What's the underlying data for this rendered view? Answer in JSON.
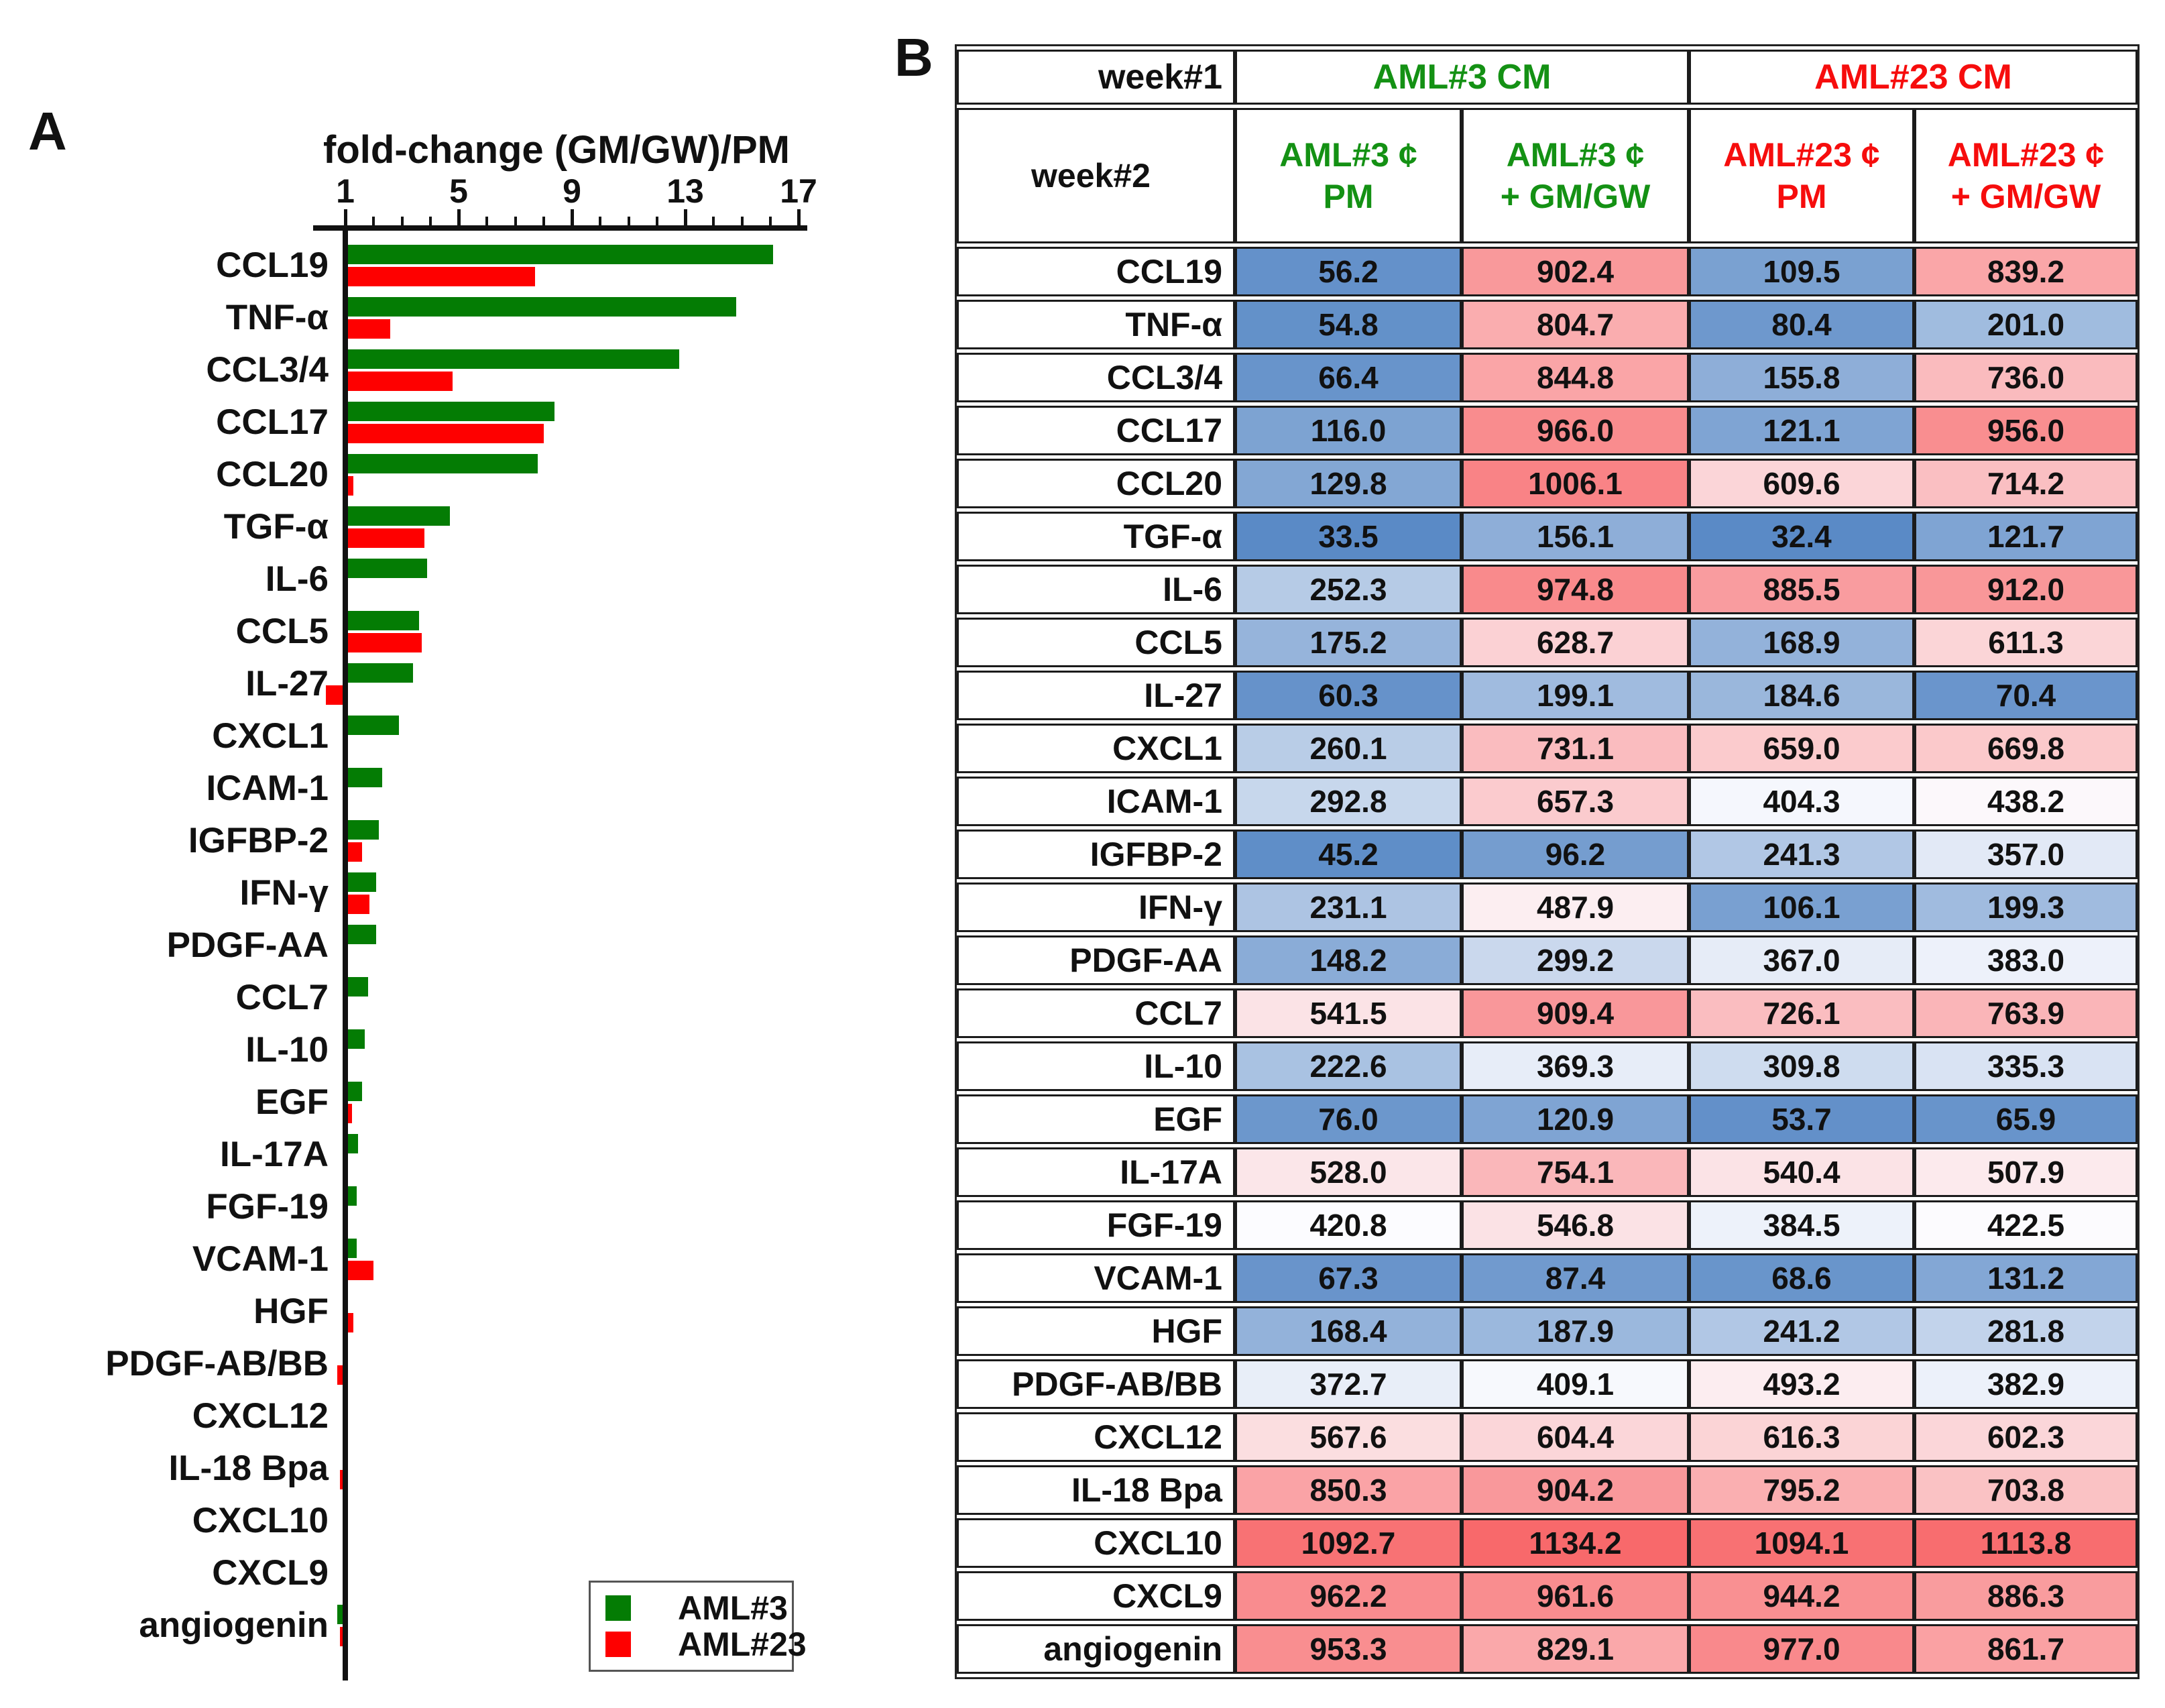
{
  "panel_a": {
    "label": "A"
  },
  "panel_b": {
    "label": "B"
  },
  "colors": {
    "bar_green": "#047c04",
    "bar_red": "#fe0000",
    "header_green": "#149114",
    "header_red": "#f60d0d",
    "axis_black": "#111111"
  },
  "heat_scale": {
    "min": 32.4,
    "mid": 420.0,
    "max": 1134.2,
    "low_color": "#5A8AC6",
    "mid_color": "#FCFCFF",
    "high_color": "#F8696B"
  },
  "legend": {
    "items": [
      {
        "label": "AML#3",
        "color": "#047c04"
      },
      {
        "label": "AML#23",
        "color": "#fe0000"
      }
    ]
  },
  "chart_data": {
    "type": "bar",
    "orientation": "horizontal",
    "title": "fold-change (GM/GW)/PM",
    "axis_position": "top",
    "xlim": [
      1,
      17
    ],
    "major_ticks": [
      1,
      5,
      9,
      13,
      17
    ],
    "minor_tick_step": 1,
    "grid": false,
    "legend_position": "lower right",
    "categories": [
      "CCL19",
      "TNF-α",
      "CCL3/4",
      "CCL17",
      "CCL20",
      "TGF-α",
      "IL-6",
      "CCL5",
      "IL-27",
      "CXCL1",
      "ICAM-1",
      "IGFBP-2",
      "IFN-γ",
      "PDGF-AA",
      "CCL7",
      "IL-10",
      "EGF",
      "IL-17A",
      "FGF-19",
      "VCAM-1",
      "HGF",
      "PDGF-AB/BB",
      "CXCL12",
      "IL-18 Bpa",
      "CXCL10",
      "CXCL9",
      "angiogenin"
    ],
    "series": [
      {
        "name": "AML#3",
        "color": "#047c04",
        "values": [
          16.0,
          14.7,
          12.7,
          8.3,
          7.7,
          4.6,
          3.8,
          3.5,
          3.3,
          2.8,
          2.2,
          2.1,
          2.0,
          2.0,
          1.7,
          1.6,
          1.5,
          1.35,
          1.3,
          1.3,
          1.0,
          1.0,
          1.0,
          1.0,
          1.0,
          1.0,
          0.8
        ]
      },
      {
        "name": "AML#23",
        "color": "#fe0000",
        "values": [
          7.6,
          2.5,
          4.7,
          7.9,
          1.2,
          3.7,
          1.0,
          3.6,
          0.4,
          1.0,
          1.0,
          1.5,
          1.75,
          1.0,
          1.0,
          1.0,
          1.15,
          1.0,
          1.0,
          1.9,
          1.2,
          0.8,
          1.0,
          0.9,
          1.0,
          1.0,
          0.9
        ]
      }
    ]
  },
  "table": {
    "corner_row1": "week#1",
    "corner_row2": "week#2",
    "groups": [
      {
        "label": "AML#3 CM",
        "color_class": "grp-green"
      },
      {
        "label": "AML#23 CM",
        "color_class": "grp-red"
      }
    ],
    "columns": [
      {
        "line1": "AML#3 ¢",
        "line2": "PM",
        "color_class": "grp-green"
      },
      {
        "line1": "AML#3 ¢",
        "line2": "+ GM/GW",
        "color_class": "grp-green"
      },
      {
        "line1": "AML#23 ¢",
        "line2": "PM",
        "color_class": "grp-red"
      },
      {
        "line1": "AML#23 ¢",
        "line2": "+ GM/GW",
        "color_class": "grp-red"
      }
    ],
    "rows": [
      {
        "label": "CCL19",
        "values": [
          "56.2",
          "902.4",
          "109.5",
          "839.2"
        ]
      },
      {
        "label": "TNF-α",
        "values": [
          "54.8",
          "804.7",
          "80.4",
          "201.0"
        ]
      },
      {
        "label": "CCL3/4",
        "values": [
          "66.4",
          "844.8",
          "155.8",
          "736.0"
        ]
      },
      {
        "label": "CCL17",
        "values": [
          "116.0",
          "966.0",
          "121.1",
          "956.0"
        ]
      },
      {
        "label": "CCL20",
        "values": [
          "129.8",
          "1006.1",
          "609.6",
          "714.2"
        ]
      },
      {
        "label": "TGF-α",
        "values": [
          "33.5",
          "156.1",
          "32.4",
          "121.7"
        ]
      },
      {
        "label": "IL-6",
        "values": [
          "252.3",
          "974.8",
          "885.5",
          "912.0"
        ]
      },
      {
        "label": "CCL5",
        "values": [
          "175.2",
          "628.7",
          "168.9",
          "611.3"
        ]
      },
      {
        "label": "IL-27",
        "values": [
          "60.3",
          "199.1",
          "184.6",
          "70.4"
        ]
      },
      {
        "label": "CXCL1",
        "values": [
          "260.1",
          "731.1",
          "659.0",
          "669.8"
        ]
      },
      {
        "label": "ICAM-1",
        "values": [
          "292.8",
          "657.3",
          "404.3",
          "438.2"
        ]
      },
      {
        "label": "IGFBP-2",
        "values": [
          "45.2",
          "96.2",
          "241.3",
          "357.0"
        ]
      },
      {
        "label": "IFN-γ",
        "values": [
          "231.1",
          "487.9",
          "106.1",
          "199.3"
        ]
      },
      {
        "label": "PDGF-AA",
        "values": [
          "148.2",
          "299.2",
          "367.0",
          "383.0"
        ]
      },
      {
        "label": "CCL7",
        "values": [
          "541.5",
          "909.4",
          "726.1",
          "763.9"
        ]
      },
      {
        "label": "IL-10",
        "values": [
          "222.6",
          "369.3",
          "309.8",
          "335.3"
        ]
      },
      {
        "label": "EGF",
        "values": [
          "76.0",
          "120.9",
          "53.7",
          "65.9"
        ]
      },
      {
        "label": "IL-17A",
        "values": [
          "528.0",
          "754.1",
          "540.4",
          "507.9"
        ]
      },
      {
        "label": "FGF-19",
        "values": [
          "420.8",
          "546.8",
          "384.5",
          "422.5"
        ]
      },
      {
        "label": "VCAM-1",
        "values": [
          "67.3",
          "87.4",
          "68.6",
          "131.2"
        ]
      },
      {
        "label": "HGF",
        "values": [
          "168.4",
          "187.9",
          "241.2",
          "281.8"
        ]
      },
      {
        "label": "PDGF-AB/BB",
        "values": [
          "372.7",
          "409.1",
          "493.2",
          "382.9"
        ]
      },
      {
        "label": "CXCL12",
        "values": [
          "567.6",
          "604.4",
          "616.3",
          "602.3"
        ]
      },
      {
        "label": "IL-18 Bpa",
        "values": [
          "850.3",
          "904.2",
          "795.2",
          "703.8"
        ]
      },
      {
        "label": "CXCL10",
        "values": [
          "1092.7",
          "1134.2",
          "1094.1",
          "1113.8"
        ]
      },
      {
        "label": "CXCL9",
        "values": [
          "962.2",
          "961.6",
          "944.2",
          "886.3"
        ]
      },
      {
        "label": "angiogenin",
        "values": [
          "953.3",
          "829.1",
          "977.0",
          "861.7"
        ]
      }
    ]
  }
}
